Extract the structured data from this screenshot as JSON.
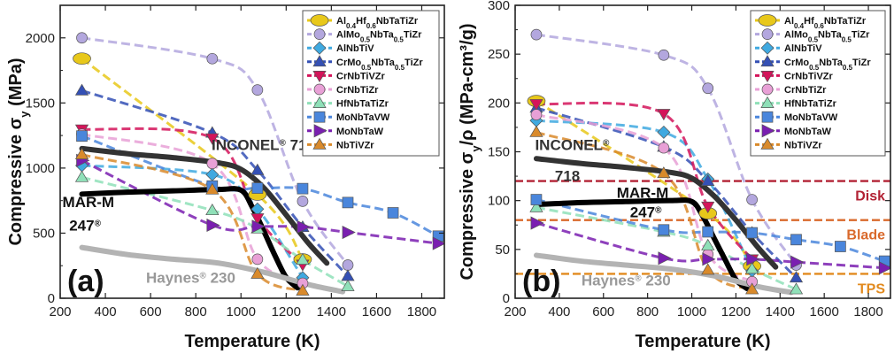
{
  "chart_data": [
    {
      "panel": "(a)",
      "type": "line",
      "xlabel": "Temperature (K)",
      "ylabel": "Compressive σ",
      "ylabel_sub": "y",
      "ylabel_unit": " (MPa)",
      "xlim": [
        200,
        1900
      ],
      "ylim": [
        0,
        2250
      ],
      "xticks": [
        200,
        400,
        600,
        800,
        1000,
        1200,
        1400,
        1600,
        1800
      ],
      "yticks": [
        0,
        500,
        1000,
        1500,
        2000
      ],
      "annotations": [
        {
          "text": "INCONEL",
          "sup": "®",
          "tail": " 718",
          "x": 870,
          "y": 1140,
          "color": "#333333"
        },
        {
          "text": "MAR-M",
          "x": 210,
          "y": 700,
          "color": "#111111"
        },
        {
          "text": "247",
          "sup": "®",
          "x": 240,
          "y": 520,
          "color": "#111111"
        },
        {
          "text": "Haynes",
          "sup": "®",
          "tail": " 230",
          "x": 580,
          "y": 120,
          "color": "#999999"
        }
      ],
      "series": [
        {
          "name": "Al0.4Hf0.6NbTaTiZr",
          "color": "#e8c81a",
          "marker": "ellipse",
          "x": [
            296,
            1073,
            1273
          ],
          "y": [
            1841,
            796,
            298
          ]
        },
        {
          "name": "AlMo0.5NbTa0.5TiZr",
          "color": "#b3a7de",
          "marker": "circle",
          "x": [
            296,
            873,
            1073,
            1273,
            1473
          ],
          "y": [
            2000,
            1840,
            1600,
            745,
            255
          ]
        },
        {
          "name": "AlNbTiV",
          "color": "#3fa9e0",
          "marker": "diamond",
          "x": [
            296,
            873,
            1073,
            1273
          ],
          "y": [
            1020,
            950,
            685,
            158
          ]
        },
        {
          "name": "CrMo0.5NbTa0.5TiZr",
          "color": "#3450b5",
          "marker": "triangle-up",
          "x": [
            296,
            873,
            1073,
            1273,
            1473
          ],
          "y": [
            1595,
            1270,
            983,
            546,
            170
          ]
        },
        {
          "name": "CrNbTiVZr",
          "color": "#d4145a",
          "marker": "triangle-down",
          "x": [
            296,
            873,
            1073,
            1273
          ],
          "y": [
            1298,
            1230,
            615,
            259
          ]
        },
        {
          "name": "CrNbTiZr",
          "color": "#e8a0d6",
          "marker": "circle",
          "x": [
            296,
            873,
            1073,
            1273
          ],
          "y": [
            1260,
            1035,
            300,
            115
          ]
        },
        {
          "name": "HfNbTaTiZr",
          "color": "#8fe0b8",
          "marker": "triangle-up",
          "x": [
            296,
            873,
            1073,
            1273,
            1473
          ],
          "y": [
            929,
            675,
            535,
            295,
            92
          ]
        },
        {
          "name": "MoNbTaVW",
          "color": "#4a86dc",
          "marker": "square",
          "x": [
            296,
            873,
            1073,
            1273,
            1473,
            1673,
            1873
          ],
          "y": [
            1246,
            862,
            846,
            842,
            735,
            656,
            477
          ]
        },
        {
          "name": "MoNbTaW",
          "color": "#7a1fb0",
          "marker": "triangle-right",
          "x": [
            296,
            873,
            1073,
            1273,
            1473,
            1873
          ],
          "y": [
            1058,
            561,
            552,
            548,
            506,
            421
          ]
        },
        {
          "name": "NbTiVZr",
          "color": "#d98a2b",
          "marker": "triangle-up",
          "x": [
            296,
            873,
            1073,
            1273
          ],
          "y": [
            1104,
            834,
            187,
            58
          ]
        }
      ],
      "reference_curves": [
        {
          "name": "INCONEL 718",
          "color": "#333333",
          "x": [
            296,
            500,
            700,
            900,
            1000,
            1100,
            1200,
            1300,
            1380
          ],
          "y": [
            1150,
            1110,
            1080,
            1040,
            990,
            850,
            640,
            420,
            270
          ]
        },
        {
          "name": "MAR-M 247",
          "color": "#000000",
          "x": [
            296,
            500,
            700,
            900,
            1000,
            1050,
            1100,
            1150,
            1200,
            1250
          ],
          "y": [
            800,
            815,
            825,
            835,
            830,
            700,
            520,
            330,
            160,
            80
          ]
        },
        {
          "name": "Haynes 230",
          "color": "#b3b3b3",
          "x": [
            296,
            500,
            700,
            900,
            1100,
            1300,
            1450
          ],
          "y": [
            390,
            335,
            300,
            270,
            200,
            105,
            50
          ]
        }
      ]
    },
    {
      "panel": "(b)",
      "type": "line",
      "xlabel": "Temperature (K)",
      "ylabel": "Compressive σ",
      "ylabel_sub": "y",
      "ylabel_unit": "/ρ (MPa-cm³/g)",
      "xlim": [
        200,
        1900
      ],
      "ylim": [
        0,
        300
      ],
      "xticks": [
        200,
        400,
        600,
        800,
        1000,
        1200,
        1400,
        1600,
        1800
      ],
      "yticks": [
        0,
        50,
        100,
        150,
        200,
        250,
        300
      ],
      "annotations": [
        {
          "text": "INCONEL",
          "sup": "®",
          "x": 290,
          "y": 152,
          "color": "#333333"
        },
        {
          "text": "718",
          "x": 380,
          "y": 120,
          "color": "#333333"
        },
        {
          "text": "MAR-M",
          "x": 660,
          "y": 103,
          "color": "#111111"
        },
        {
          "text": "247",
          "sup": "®",
          "x": 720,
          "y": 83,
          "color": "#111111"
        },
        {
          "text": "Haynes",
          "sup": "®",
          "tail": " 230",
          "x": 500,
          "y": 13,
          "color": "#999999"
        }
      ],
      "limit_lines": [
        {
          "label": "Disk",
          "y": 120,
          "color": "#b22234"
        },
        {
          "label": "Blade",
          "y": 80,
          "color": "#d9692b"
        },
        {
          "label": "TPS",
          "y": 25,
          "color": "#e28a1e"
        }
      ],
      "series": [
        {
          "name": "Al0.4Hf0.6NbTaTiZr",
          "color": "#e8c81a",
          "marker": "ellipse",
          "x": [
            296,
            1073,
            1273
          ],
          "y": [
            202,
            87,
            33
          ]
        },
        {
          "name": "AlMo0.5NbTa0.5TiZr",
          "color": "#b3a7de",
          "marker": "circle",
          "x": [
            296,
            873,
            1073,
            1273,
            1473
          ],
          "y": [
            270,
            249,
            215,
            101,
            34
          ]
        },
        {
          "name": "AlNbTiV",
          "color": "#3fa9e0",
          "marker": "diamond",
          "x": [
            296,
            873,
            1073,
            1273
          ],
          "y": [
            182,
            170,
            122,
            28
          ]
        },
        {
          "name": "CrMo0.5NbTa0.5TiZr",
          "color": "#3450b5",
          "marker": "triangle-up",
          "x": [
            296,
            873,
            1073,
            1273,
            1473
          ],
          "y": [
            195,
            155,
            120,
            67,
            21
          ]
        },
        {
          "name": "CrNbTiVZr",
          "color": "#d4145a",
          "marker": "triangle-down",
          "x": [
            296,
            873,
            1073,
            1273
          ],
          "y": [
            199,
            189,
            94,
            40
          ]
        },
        {
          "name": "CrNbTiZr",
          "color": "#e8a0d6",
          "marker": "circle",
          "x": [
            296,
            873,
            1073,
            1273
          ],
          "y": [
            188,
            154,
            45,
            17
          ]
        },
        {
          "name": "HfNbTaTiZr",
          "color": "#8fe0b8",
          "marker": "triangle-up",
          "x": [
            296,
            873,
            1073,
            1273,
            1473
          ],
          "y": [
            93,
            68,
            54,
            30,
            9
          ]
        },
        {
          "name": "MoNbTaVW",
          "color": "#4a86dc",
          "marker": "square",
          "x": [
            296,
            873,
            1073,
            1273,
            1473,
            1673,
            1873
          ],
          "y": [
            101,
            70,
            68,
            67,
            60,
            53,
            38
          ]
        },
        {
          "name": "MoNbTaW",
          "color": "#7a1fb0",
          "marker": "triangle-right",
          "x": [
            296,
            873,
            1073,
            1273,
            1473,
            1873
          ],
          "y": [
            77,
            41,
            40,
            40,
            37,
            31
          ]
        },
        {
          "name": "NbTiVZr",
          "color": "#d98a2b",
          "marker": "triangle-up",
          "x": [
            296,
            873,
            1073,
            1273
          ],
          "y": [
            170,
            128,
            29,
            9
          ]
        }
      ],
      "reference_curves": [
        {
          "name": "INCONEL 718",
          "color": "#333333",
          "x": [
            296,
            500,
            700,
            900,
            1000,
            1100,
            1200,
            1300,
            1380
          ],
          "y": [
            143,
            138,
            134,
            129,
            123,
            105,
            80,
            52,
            32
          ]
        },
        {
          "name": "MAR-M 247",
          "color": "#000000",
          "x": [
            296,
            500,
            700,
            900,
            1000,
            1050,
            1100,
            1150,
            1200,
            1250
          ],
          "y": [
            96,
            98,
            99,
            100,
            99,
            84,
            62,
            40,
            19,
            10
          ]
        },
        {
          "name": "Haynes 230",
          "color": "#b3b3b3",
          "x": [
            296,
            500,
            700,
            900,
            1100,
            1300,
            1450
          ],
          "y": [
            44,
            38,
            34,
            30,
            23,
            12,
            6
          ]
        }
      ]
    }
  ],
  "legend_entries": [
    {
      "parts": [
        [
          "Al",
          ""
        ],
        [
          "0.4",
          "sub"
        ],
        [
          "Hf",
          ""
        ],
        [
          "0.6",
          "sub"
        ],
        [
          "NbTaTiZr",
          ""
        ]
      ]
    },
    {
      "parts": [
        [
          "AlMo",
          ""
        ],
        [
          "0.5",
          "sub"
        ],
        [
          "NbTa",
          ""
        ],
        [
          "0.5",
          "sub"
        ],
        [
          "TiZr",
          ""
        ]
      ]
    },
    {
      "parts": [
        [
          "AlNbTiV",
          ""
        ]
      ]
    },
    {
      "parts": [
        [
          "CrMo",
          ""
        ],
        [
          "0.5",
          "sub"
        ],
        [
          "NbTa",
          ""
        ],
        [
          "0.5",
          "sub"
        ],
        [
          "TiZr",
          ""
        ]
      ]
    },
    {
      "parts": [
        [
          "CrNbTiVZr",
          ""
        ]
      ]
    },
    {
      "parts": [
        [
          "CrNbTiZr",
          ""
        ]
      ]
    },
    {
      "parts": [
        [
          "HfNbTaTiZr",
          ""
        ]
      ]
    },
    {
      "parts": [
        [
          "MoNbTaVW",
          ""
        ]
      ]
    },
    {
      "parts": [
        [
          "MoNbTaW",
          ""
        ]
      ]
    },
    {
      "parts": [
        [
          "NbTiVZr",
          ""
        ]
      ]
    }
  ]
}
